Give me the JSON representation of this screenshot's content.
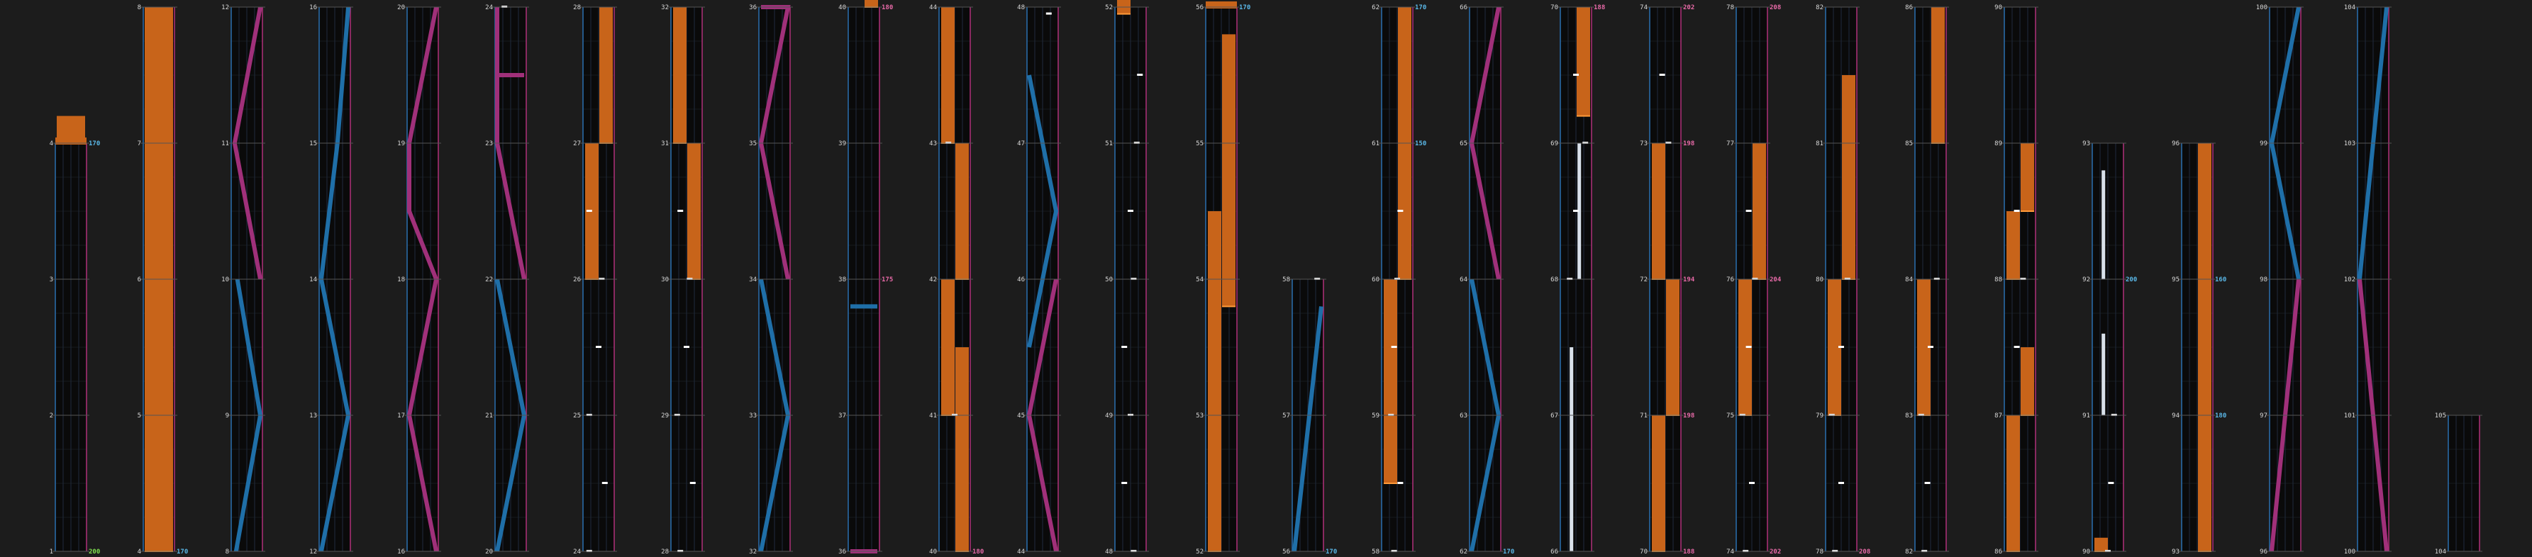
{
  "colors": {
    "background": "#1c1c1c",
    "lane": "#0a0a0a",
    "grid": "#2a3a55",
    "measure_line": "#555555",
    "left_border": "#2a6fb0",
    "right_border": "#b0307a",
    "hold": "#c8641a",
    "hold_edge": "#ff9a3a",
    "tick_short": "#ffffff",
    "tick_orange": "#ffa020",
    "laser_blue": "#1f6fa8",
    "laser_pink": "#a0307a",
    "bpm_cyan": "#5ab8e8",
    "bpm_green": "#7fe04f",
    "bpm_pink": "#e86aa8",
    "white_hold": "#d8e0ea"
  },
  "chart_data": {
    "type": "note-chart",
    "columns": [
      {
        "measures": [
          1,
          2,
          3,
          4
        ],
        "bpm_labels": [
          {
            "measure": 1,
            "text": "200",
            "color": "green"
          },
          {
            "measure": 4,
            "text": "170",
            "color": "cyan"
          }
        ]
      },
      {
        "measures": [
          4,
          5,
          6,
          7,
          8
        ],
        "bpm_labels": [
          {
            "measure": 4,
            "text": "170",
            "color": "cyan"
          }
        ]
      },
      {
        "measures": [
          8,
          9,
          10,
          11,
          12
        ],
        "bpm_labels": []
      },
      {
        "measures": [
          12,
          13,
          14,
          15,
          16
        ],
        "bpm_labels": []
      },
      {
        "measures": [
          16,
          17,
          18,
          19,
          20
        ],
        "bpm_labels": []
      },
      {
        "measures": [
          20,
          21,
          22,
          23,
          24
        ],
        "bpm_labels": []
      },
      {
        "measures": [
          24,
          25,
          26,
          27,
          28
        ],
        "bpm_labels": []
      },
      {
        "measures": [
          28,
          29,
          30,
          31,
          32
        ],
        "bpm_labels": []
      },
      {
        "measures": [
          32,
          33,
          34,
          35,
          36
        ],
        "bpm_labels": []
      },
      {
        "measures": [
          36,
          37,
          38,
          39,
          40
        ],
        "bpm_labels": [
          {
            "measure": 38,
            "text": "175",
            "color": "pink"
          },
          {
            "measure": 40,
            "text": "180",
            "color": "pink"
          }
        ]
      },
      {
        "measures": [
          40,
          41,
          42,
          43,
          44
        ],
        "bpm_labels": [
          {
            "measure": 40,
            "text": "180",
            "color": "pink"
          }
        ]
      },
      {
        "measures": [
          44,
          45,
          46,
          47,
          48
        ],
        "bpm_labels": []
      },
      {
        "measures": [
          48,
          49,
          50,
          51,
          52
        ],
        "bpm_labels": []
      },
      {
        "measures": [
          52,
          53,
          54,
          55,
          56
        ],
        "bpm_labels": [
          {
            "measure": 56,
            "text": "170",
            "color": "cyan"
          }
        ]
      },
      {
        "measures": [
          56,
          57,
          58
        ],
        "bpm_labels": [
          {
            "measure": 56,
            "text": "170",
            "color": "cyan"
          }
        ]
      },
      {
        "measures": [
          58,
          59,
          60,
          61,
          62
        ],
        "bpm_labels": [
          {
            "measure": 61,
            "text": "150",
            "color": "cyan"
          },
          {
            "measure": 62,
            "text": "170",
            "color": "cyan"
          }
        ]
      },
      {
        "measures": [
          62,
          63,
          64,
          65,
          66
        ],
        "bpm_labels": [
          {
            "measure": 62,
            "text": "170",
            "color": "cyan"
          }
        ]
      },
      {
        "measures": [
          66,
          67,
          68,
          69,
          70
        ],
        "bpm_labels": [
          {
            "measure": 70,
            "text": "188",
            "color": "pink"
          }
        ]
      },
      {
        "measures": [
          70,
          71,
          72,
          73,
          74
        ],
        "bpm_labels": [
          {
            "measure": 70,
            "text": "188",
            "color": "pink"
          },
          {
            "measure": 71,
            "text": "198",
            "color": "pink"
          },
          {
            "measure": 72,
            "text": "194",
            "color": "pink"
          },
          {
            "measure": 73,
            "text": "198",
            "color": "pink"
          },
          {
            "measure": 74,
            "text": "202",
            "color": "pink"
          }
        ]
      },
      {
        "measures": [
          74,
          75,
          76,
          77,
          78
        ],
        "bpm_labels": [
          {
            "measure": 74,
            "text": "202",
            "color": "pink"
          },
          {
            "measure": 76,
            "text": "204",
            "color": "pink"
          },
          {
            "measure": 78,
            "text": "208",
            "color": "pink"
          }
        ]
      },
      {
        "measures": [
          78,
          79,
          80,
          81,
          82
        ],
        "bpm_labels": [
          {
            "measure": 78,
            "text": "208",
            "color": "pink"
          }
        ]
      },
      {
        "measures": [
          82,
          83,
          84,
          85,
          86
        ],
        "bpm_labels": []
      },
      {
        "measures": [
          86,
          87,
          88,
          89,
          90
        ],
        "bpm_labels": []
      },
      {
        "measures": [
          90,
          91,
          92,
          93
        ],
        "bpm_labels": [
          {
            "measure": 92,
            "text": "200",
            "color": "cyan"
          }
        ]
      },
      {
        "measures": [
          93,
          94,
          95,
          96
        ],
        "bpm_labels": [
          {
            "measure": 94,
            "text": "180",
            "color": "cyan"
          },
          {
            "measure": 95,
            "text": "160",
            "color": "cyan"
          }
        ]
      },
      {
        "measures": [
          96,
          97,
          98,
          99,
          100
        ],
        "bpm_labels": []
      },
      {
        "measures": [
          100,
          101,
          102,
          103,
          104
        ],
        "bpm_labels": []
      },
      {
        "measures": [
          104,
          105
        ],
        "bpm_labels": []
      }
    ]
  }
}
